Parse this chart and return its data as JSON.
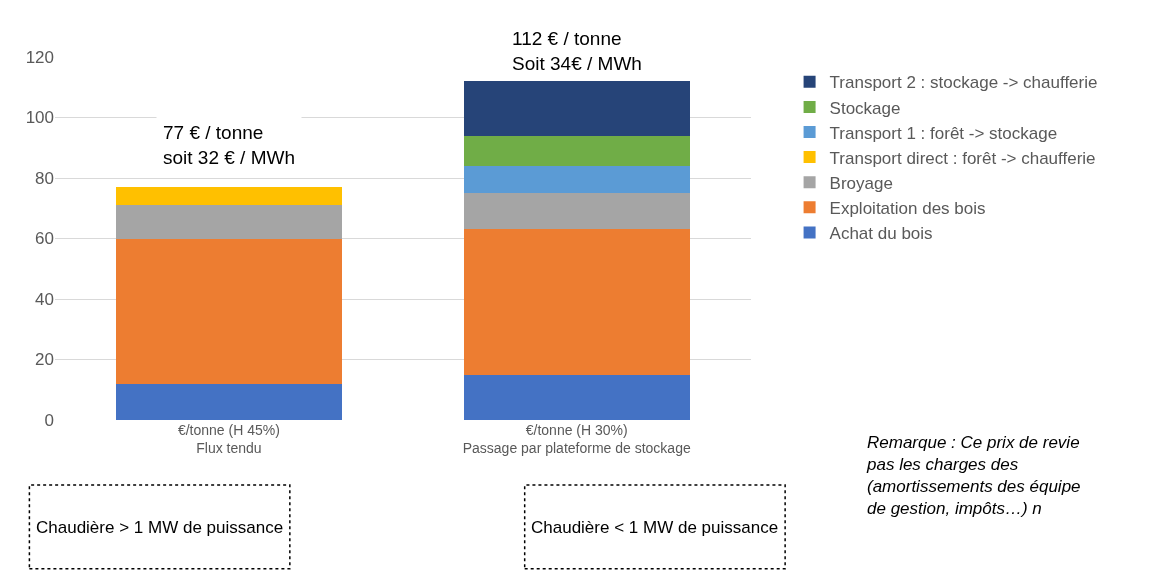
{
  "chart_data": {
    "type": "bar",
    "stacked": true,
    "categories": [
      "€/tonne (H 45%)\nFlux tendu",
      "€/tonne (H 30%)\nPassage par plateforme de stockage"
    ],
    "series": [
      {
        "name": "Achat du bois",
        "color": "#4472c4",
        "values": [
          12,
          15
        ]
      },
      {
        "name": "Exploitation des bois",
        "color": "#ed7d31",
        "values": [
          48,
          48
        ]
      },
      {
        "name": "Broyage",
        "color": "#a5a5a5",
        "values": [
          11,
          12
        ]
      },
      {
        "name": "Transport direct : forêt -> chaufferie",
        "color": "#ffc000",
        "values": [
          6,
          null
        ]
      },
      {
        "name": "Transport 1 : forêt -> stockage",
        "color": "#5b9bd5",
        "values": [
          null,
          9
        ]
      },
      {
        "name": "Stockage",
        "color": "#70ad47",
        "values": [
          null,
          10
        ]
      },
      {
        "name": "Transport 2 : stockage -> chaufferie",
        "color": "#264478",
        "values": [
          null,
          18
        ]
      }
    ],
    "ylim": [
      0,
      120
    ],
    "yticks": [
      0,
      20,
      40,
      60,
      80,
      100,
      120
    ],
    "grid": "y",
    "legend": "right",
    "annotations": [
      "77 € / tonne\nsoit 32 € / MWh",
      "112 € / tonne\nSoit 34€ / MWh",
      "Chaudière > 1 MW de puissance",
      "Chaudière < 1 MW de puissance",
      "Remarque : Ce prix de revie\npas les charges des\n(amortissements des équipe\nde gestion, impôts…) n"
    ]
  }
}
